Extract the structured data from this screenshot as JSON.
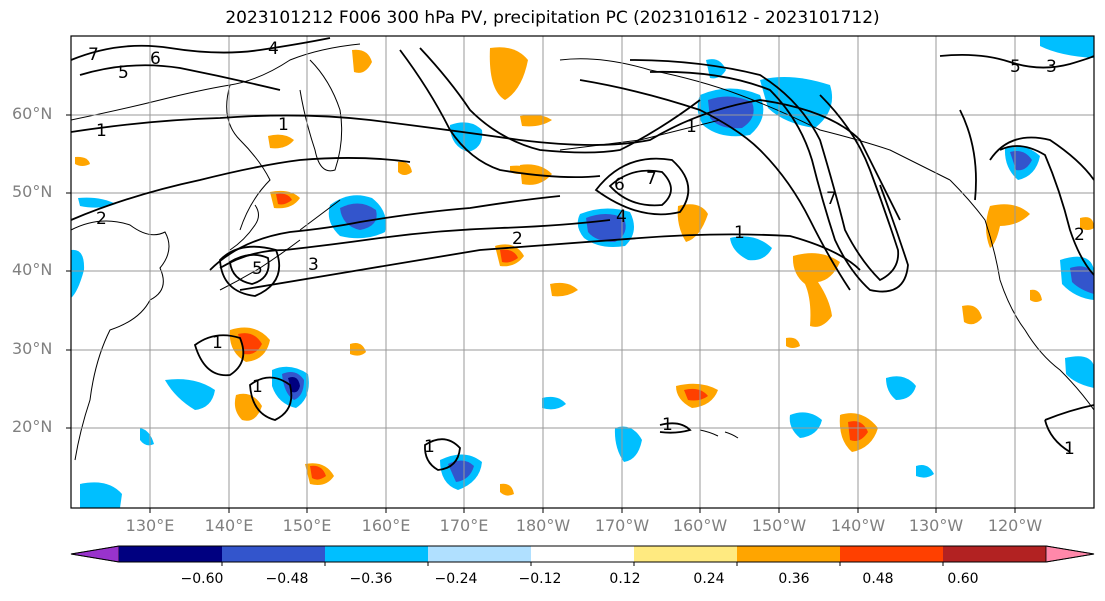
{
  "title": "2023101212 F006 300 hPa PV, precipitation PC (2023101612 - 2023101712)",
  "lat_labels": [
    "60°N",
    "50°N",
    "40°N",
    "30°N",
    "20°N"
  ],
  "lon_labels": [
    "130°E",
    "140°E",
    "150°E",
    "160°E",
    "170°E",
    "180°W",
    "170°W",
    "160°W",
    "150°W",
    "140°W",
    "130°W",
    "120°W"
  ],
  "contour_labels": [
    "7",
    "5",
    "6",
    "1",
    "4",
    "2",
    "5",
    "3",
    "1",
    "2",
    "7",
    "6",
    "4",
    "1",
    "1",
    "7",
    "1",
    "1",
    "1",
    "1",
    "1",
    "2",
    "5",
    "3"
  ],
  "colorbar": {
    "ticks": [
      "−0.60",
      "−0.48",
      "−0.36",
      "−0.24",
      "−0.12",
      "0.12",
      "0.24",
      "0.36",
      "0.48",
      "0.60"
    ],
    "colors": [
      "#9933cc",
      "#000080",
      "#3355cc",
      "#00bfff",
      "#b0e0ff",
      "#ffffff",
      "#ffea80",
      "#ffa500",
      "#ff4000",
      "#b22222",
      "#ff88aa"
    ]
  }
}
